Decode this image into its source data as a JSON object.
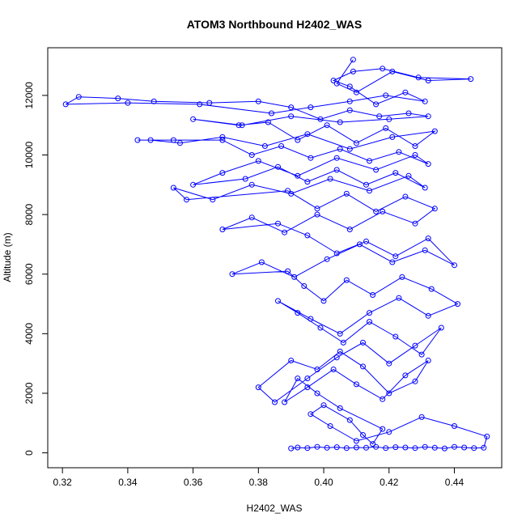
{
  "chart_data": {
    "type": "line",
    "title": "ATOM3 Northbound H2402_WAS",
    "xlabel": "H2402_WAS",
    "ylabel": "Altitude (m)",
    "xlim": [
      0.3155,
      0.4545
    ],
    "ylim": [
      -500,
      13600
    ],
    "xticks": [
      0.32,
      0.34,
      0.36,
      0.38,
      0.4,
      0.42,
      0.44
    ],
    "xtick_labels": [
      "0.32",
      "0.34",
      "0.36",
      "0.38",
      "0.40",
      "0.42",
      "0.44"
    ],
    "yticks": [
      0,
      2000,
      4000,
      6000,
      8000,
      10000,
      12000
    ],
    "ytick_labels": [
      "0",
      "2000",
      "4000",
      "6000",
      "8000",
      "10000",
      "12000"
    ],
    "grid": false,
    "line_color": "#0000ff",
    "marker": "open-circle",
    "series": [
      {
        "x": [
          0.39,
          0.392,
          0.395,
          0.398,
          0.401,
          0.404,
          0.407,
          0.41,
          0.413,
          0.416,
          0.419,
          0.422,
          0.425,
          0.428,
          0.431,
          0.434,
          0.437,
          0.44,
          0.443,
          0.446,
          0.449,
          0.45,
          0.44,
          0.43,
          0.42,
          0.41,
          0.402,
          0.396,
          0.4,
          0.408,
          0.412,
          0.415,
          0.418,
          0.405,
          0.398,
          0.392,
          0.388,
          0.395,
          0.403,
          0.41,
          0.418,
          0.425,
          0.432,
          0.428,
          0.42,
          0.412,
          0.405,
          0.398,
          0.39,
          0.38,
          0.385,
          0.395,
          0.404,
          0.412,
          0.42,
          0.428,
          0.436,
          0.43,
          0.422,
          0.414,
          0.406,
          0.399,
          0.392,
          0.386,
          0.396,
          0.405,
          0.414,
          0.423,
          0.432,
          0.441,
          0.433,
          0.424,
          0.415,
          0.407,
          0.4,
          0.394,
          0.389,
          0.372,
          0.381,
          0.391,
          0.401,
          0.411,
          0.421,
          0.431,
          0.44,
          0.432,
          0.422,
          0.413,
          0.404,
          0.395,
          0.386,
          0.369,
          0.378,
          0.388,
          0.398,
          0.408,
          0.418,
          0.428,
          0.434,
          0.425,
          0.416,
          0.407,
          0.398,
          0.389,
          0.358,
          0.354,
          0.366,
          0.378,
          0.39,
          0.402,
          0.414,
          0.426,
          0.431,
          0.422,
          0.413,
          0.404,
          0.395,
          0.386,
          0.376,
          0.36,
          0.369,
          0.38,
          0.392,
          0.404,
          0.416,
          0.428,
          0.432,
          0.423,
          0.414,
          0.405,
          0.396,
          0.387,
          0.378,
          0.369,
          0.354,
          0.343,
          0.347,
          0.356,
          0.369,
          0.382,
          0.395,
          0.408,
          0.421,
          0.434,
          0.428,
          0.419,
          0.41,
          0.401,
          0.392,
          0.383,
          0.374,
          0.36,
          0.375,
          0.39,
          0.405,
          0.42,
          0.432,
          0.426,
          0.417,
          0.408,
          0.399,
          0.39,
          0.38,
          0.365,
          0.348,
          0.337,
          0.325,
          0.321,
          0.34,
          0.362,
          0.384,
          0.396,
          0.408,
          0.419,
          0.431,
          0.425,
          0.416,
          0.408,
          0.403,
          0.409,
          0.418,
          0.429,
          0.445,
          0.432,
          0.421,
          0.41,
          0.404,
          0.409
        ],
        "y": [
          150,
          180,
          160,
          200,
          170,
          190,
          160,
          180,
          170,
          200,
          160,
          190,
          180,
          160,
          200,
          170,
          150,
          200,
          180,
          160,
          170,
          550,
          900,
          1200,
          700,
          400,
          900,
          1300,
          1600,
          1100,
          600,
          300,
          800,
          1500,
          2000,
          2500,
          1700,
          2200,
          2800,
          2300,
          1800,
          2600,
          3100,
          2400,
          2000,
          2900,
          3400,
          2800,
          3100,
          2200,
          1700,
          2500,
          3200,
          3700,
          3000,
          3600,
          4200,
          3300,
          3900,
          4400,
          3700,
          4200,
          4700,
          5100,
          4500,
          4000,
          4700,
          5200,
          4600,
          5000,
          5500,
          5900,
          5300,
          5800,
          5100,
          5600,
          6100,
          6000,
          6400,
          5900,
          6500,
          7000,
          6400,
          6800,
          6300,
          7200,
          6600,
          7100,
          6700,
          7300,
          7700,
          7500,
          7900,
          7400,
          8000,
          7500,
          8100,
          7700,
          8200,
          8600,
          8100,
          8700,
          8200,
          8800,
          8500,
          8900,
          8500,
          9000,
          8700,
          9200,
          8800,
          9300,
          8900,
          9400,
          9000,
          9500,
          9100,
          9600,
          9200,
          9000,
          9400,
          9800,
          9300,
          9900,
          9500,
          10000,
          9700,
          10100,
          9800,
          10200,
          9900,
          10300,
          10000,
          10500,
          10500,
          10500,
          10500,
          10400,
          10600,
          10300,
          10700,
          10200,
          10600,
          10800,
          10300,
          10900,
          10400,
          11000,
          10500,
          11100,
          11000,
          11200,
          11000,
          11300,
          11100,
          11200,
          11300,
          11400,
          11300,
          11500,
          11200,
          11600,
          11800,
          11750,
          11800,
          11900,
          11950,
          11700,
          11750,
          11700,
          11400,
          11600,
          11800,
          12000,
          11800,
          12100,
          11700,
          12300,
          12500,
          12800,
          12900,
          12600,
          12550,
          12500,
          12800,
          12100,
          12400,
          13200
        ]
      }
    ]
  }
}
